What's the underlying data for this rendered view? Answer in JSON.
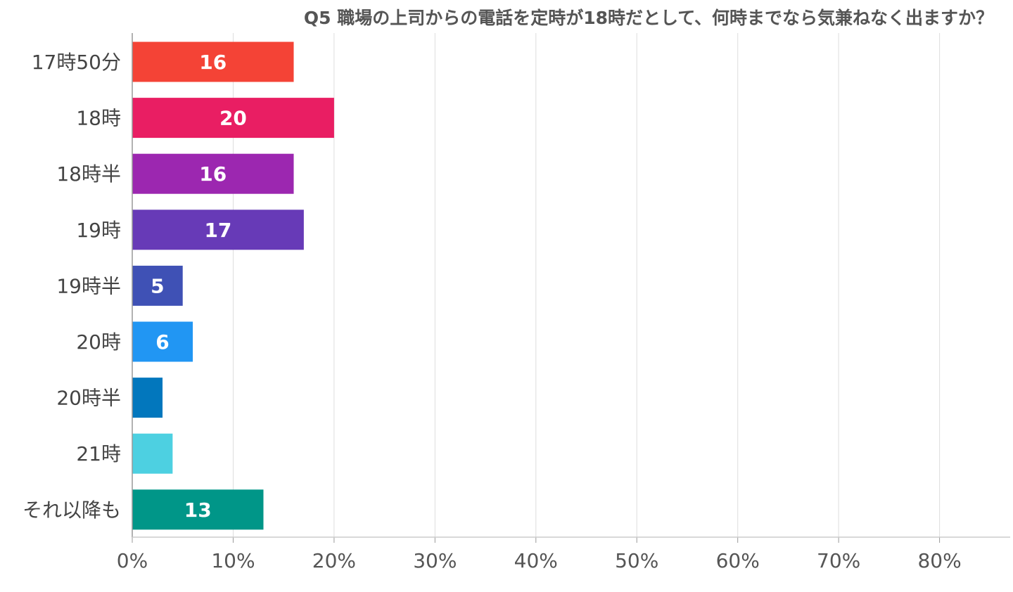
{
  "chart_data": {
    "type": "bar",
    "orientation": "horizontal",
    "title": "Q5 職場の上司からの電話を定時が18時だとして、何時までなら気兼ねなく出ますか？",
    "categories": [
      "17時50分",
      "18時",
      "18時半",
      "19時",
      "19時半",
      "20時",
      "20時半",
      "21時",
      "それ以降も"
    ],
    "values": [
      16,
      20,
      16,
      17,
      5,
      6,
      3,
      4,
      13
    ],
    "data_labels": [
      "16",
      "20",
      "16",
      "17",
      "5",
      "6",
      "",
      "",
      "13"
    ],
    "colors": [
      "#f44336",
      "#e91e63",
      "#9c27b0",
      "#673ab7",
      "#3f51b5",
      "#2196f3",
      "#0277bd",
      "#4dd0e1",
      "#009688"
    ],
    "xlim": [
      0,
      87
    ],
    "x_ticks": [
      0,
      10,
      20,
      30,
      40,
      50,
      60,
      70,
      80
    ],
    "x_tick_labels": [
      "0%",
      "10%",
      "20%",
      "30%",
      "40%",
      "50%",
      "60%",
      "70%",
      "80%"
    ],
    "xlabel": "",
    "ylabel": "",
    "grid": true,
    "legend": "none"
  }
}
